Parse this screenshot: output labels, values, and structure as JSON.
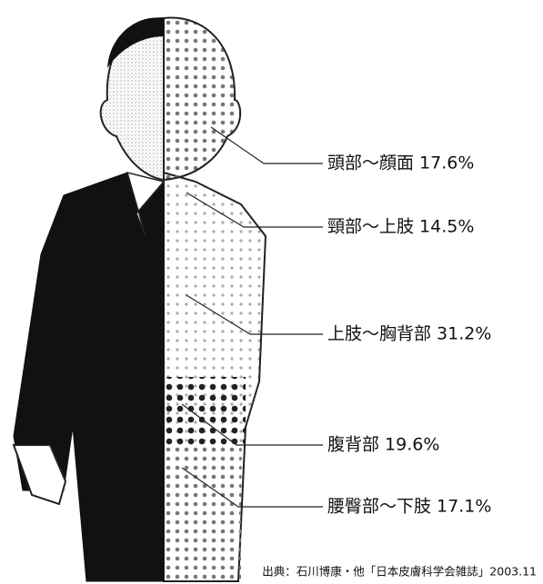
{
  "regions": [
    {
      "label": "頭部〜顔面 17.6%"
    },
    {
      "label": "頸部〜上肢 14.5%"
    },
    {
      "label": "上肢〜胸背部 31.2%"
    },
    {
      "label": "腹背部 19.6%"
    },
    {
      "label": "腰臀部〜下肢 17.1%"
    }
  ],
  "source": "出典：石川博康・他「日本皮膚科学会雑誌」2003.11"
}
